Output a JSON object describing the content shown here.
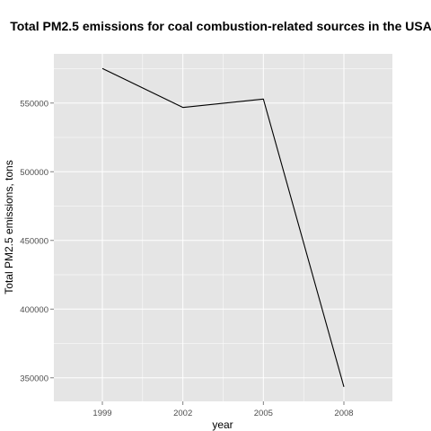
{
  "chart_data": {
    "type": "line",
    "title": "Total PM2.5 emissions for coal combustion-related sources in the USA",
    "xlabel": "year",
    "ylabel": "Total PM2.5 emissions, tons",
    "x": [
      1999,
      2002,
      2005,
      2008
    ],
    "series": [
      {
        "values": [
          575207,
          546789,
          552881,
          343432
        ]
      }
    ],
    "xlim": [
      1999,
      2008
    ],
    "ylim": [
      332844,
      585795
    ],
    "x_ticks": [
      1999,
      2002,
      2005,
      2008
    ],
    "x_tick_labels": [
      "1999",
      "2002",
      "2005",
      "2008"
    ],
    "y_ticks": [
      350000,
      400000,
      450000,
      500000,
      550000
    ],
    "y_tick_labels": [
      "350000",
      "400000",
      "450000",
      "500000",
      "550000"
    ],
    "grid": true,
    "colors": {
      "panel": "#e5e5e5",
      "grid": "#ffffff",
      "line": "#000000",
      "tick_text": "#4d4d4d"
    }
  }
}
